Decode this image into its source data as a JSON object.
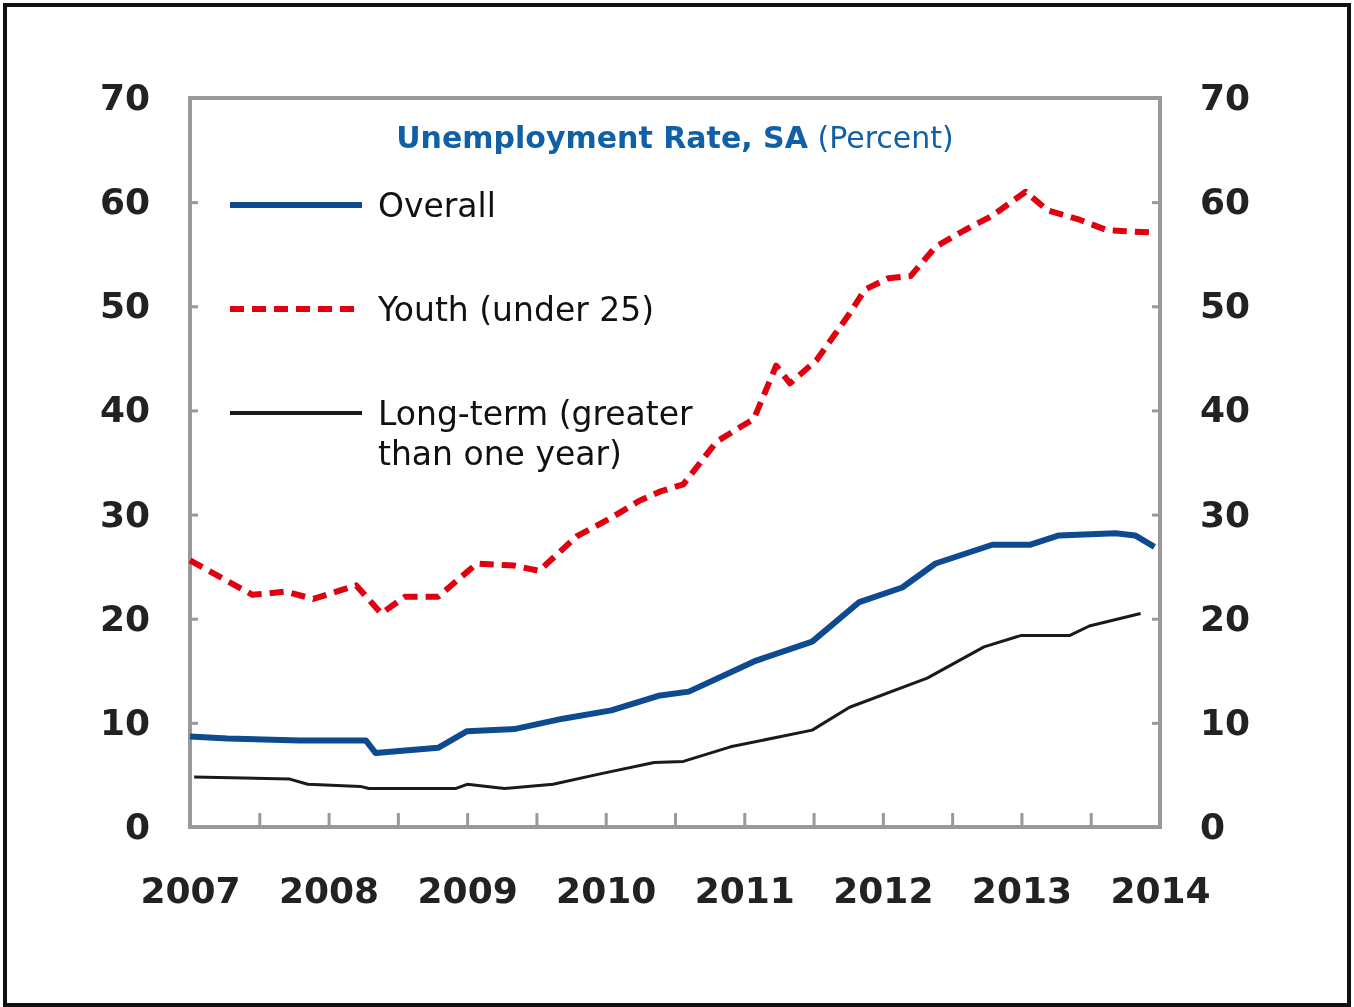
{
  "chart_data": {
    "type": "line",
    "title": "Unemployment Rate, SA",
    "subtitle": "(Percent)",
    "xlim": [
      2007,
      2014
    ],
    "xticks": [
      2007,
      {
        "value": 2007.5,
        "label": null
      },
      2008,
      {
        "value": 2008.5,
        "label": null
      },
      2009,
      {
        "value": 2009.5,
        "label": null
      },
      2010,
      {
        "value": 2010.5,
        "label": null
      },
      2011,
      {
        "value": 2011.5,
        "label": null
      },
      2012,
      {
        "value": 2012.5,
        "label": null
      },
      2013,
      {
        "value": 2013.5,
        "label": null
      },
      2014
    ],
    "ylim": [
      0,
      70
    ],
    "yticks": [
      0,
      10,
      20,
      30,
      40,
      50,
      60,
      70
    ],
    "y2lim": [
      0,
      70
    ],
    "y2ticks": [
      0,
      10,
      20,
      30,
      40,
      50,
      60,
      70
    ],
    "legend": "top left",
    "grid": false,
    "series": [
      {
        "name": "Overall",
        "color": "#0e4a8f",
        "line_style": "solid",
        "x": [
          2007.0,
          2007.27,
          2007.79,
          2008.27,
          2008.34,
          2008.79,
          2009.0,
          2009.34,
          2009.69,
          2010.04,
          2010.38,
          2010.6,
          2011.07,
          2011.49,
          2011.83,
          2012.14,
          2012.38,
          2012.79,
          2013.06,
          2013.27,
          2013.68,
          2013.82,
          2013.96
        ],
        "values": [
          8.7,
          8.5,
          8.3,
          8.3,
          7.1,
          7.6,
          9.2,
          9.4,
          10.4,
          11.2,
          12.6,
          13.0,
          15.9,
          17.8,
          21.6,
          23.0,
          25.3,
          27.1,
          27.1,
          28.0,
          28.2,
          28.0,
          26.9
        ]
      },
      {
        "name": "Youth (under 25)",
        "color": "#e00010",
        "line_style": "dashed",
        "x": [
          2007.0,
          2007.45,
          2007.69,
          2007.89,
          2008.2,
          2008.38,
          2008.55,
          2008.79,
          2009.07,
          2009.34,
          2009.52,
          2009.79,
          2010.04,
          2010.24,
          2010.39,
          2010.56,
          2010.8,
          2011.07,
          2011.23,
          2011.33,
          2011.52,
          2011.76,
          2011.87,
          2012.04,
          2012.2,
          2012.38,
          2012.59,
          2012.79,
          2013.03,
          2013.19,
          2013.4,
          2013.62,
          2013.92
        ],
        "values": [
          25.6,
          22.3,
          22.6,
          21.9,
          23.2,
          20.5,
          22.1,
          22.1,
          25.3,
          25.1,
          24.6,
          27.9,
          29.7,
          31.3,
          32.2,
          32.9,
          37.0,
          39.2,
          44.3,
          42.6,
          44.8,
          49.3,
          51.6,
          52.7,
          52.9,
          55.7,
          57.3,
          58.7,
          61.0,
          59.2,
          58.4,
          57.3,
          57.1
        ]
      },
      {
        "name": "Long-term (greater than one year)",
        "color": "#1a1a1a",
        "line_style": "solid",
        "x": [
          2007.03,
          2007.72,
          2007.85,
          2008.23,
          2008.29,
          2008.92,
          2009.0,
          2009.27,
          2009.62,
          2009.96,
          2010.35,
          2010.56,
          2010.9,
          2011.49,
          2011.76,
          2012.32,
          2012.73,
          2013.0,
          2013.35,
          2013.49,
          2013.86
        ],
        "values": [
          4.8,
          4.6,
          4.1,
          3.9,
          3.7,
          3.7,
          4.1,
          3.7,
          4.1,
          5.1,
          6.2,
          6.3,
          7.7,
          9.3,
          11.5,
          14.3,
          17.3,
          18.4,
          18.4,
          19.3,
          20.5
        ]
      }
    ]
  }
}
